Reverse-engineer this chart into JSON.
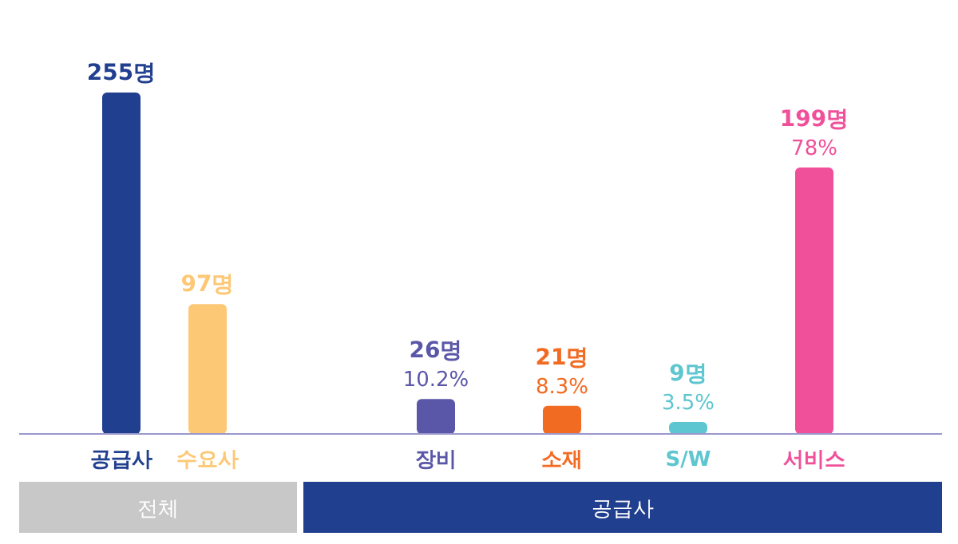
{
  "chart_data": {
    "type": "bar",
    "categories": [
      "공급사",
      "수요사",
      "장비",
      "소재",
      "S/W",
      "서비스"
    ],
    "values": [
      255,
      97,
      26,
      21,
      9,
      199
    ],
    "colors": [
      "#213f8f",
      "#fdc875",
      "#5b57a8",
      "#f26b22",
      "#5ec6d0",
      "#f0509a"
    ],
    "value_labels": [
      "255명",
      "97명",
      "26명\n10.2%",
      "21명\n8.3%",
      "9명\n3.5%",
      "199명\n78%"
    ],
    "annotations": [
      "전체",
      "공급사"
    ]
  }
}
